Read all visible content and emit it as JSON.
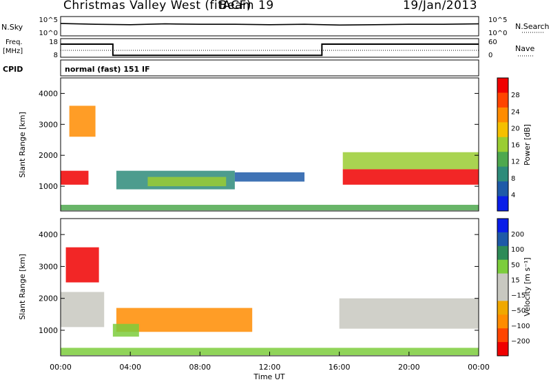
{
  "header": {
    "station": "Christmas Valley West (fitACF)",
    "beam": "Beam 19",
    "date": "19/Jan/2013"
  },
  "panels": {
    "noise": {
      "left_label": "N.Sky",
      "left_ticks": [
        "10^5",
        "10^0"
      ],
      "right_ticks": [
        "10^5",
        "10^0"
      ],
      "right_label": "N.Search"
    },
    "freq": {
      "left_label_1": "Freq.",
      "left_label_2": "[MHz]",
      "left_ticks": [
        "18",
        "8"
      ],
      "right_ticks": [
        "60",
        "0"
      ],
      "right_label": "Nave"
    },
    "cpid": {
      "label": "CPID",
      "value": "normal (fast) 151 IF"
    }
  },
  "colors": {
    "power_scale": [
      "#0a1ee8",
      "#1e5aa8",
      "#2e8b7a",
      "#4ea84e",
      "#9acd32",
      "#f5c000",
      "#ff8c00",
      "#ff4500",
      "#f00000"
    ],
    "velocity_scale": [
      "#f00000",
      "#ff4500",
      "#ff8c00",
      "#f0a800",
      "#c8c8c0",
      "#c8c8c0",
      "#7ccd3c",
      "#2e8b57",
      "#1e5aa8",
      "#0a1ee8"
    ]
  },
  "chart_data": [
    {
      "type": "line",
      "name": "noise",
      "x": [
        0,
        2,
        4,
        6,
        8,
        10,
        12,
        14,
        16,
        18,
        20,
        22,
        24
      ],
      "series": [
        {
          "values": [
            3.2,
            3.0,
            2.9,
            3.1,
            3.0,
            3.0,
            2.9,
            3.0,
            2.8,
            2.9,
            3.0,
            3.0,
            3.1
          ]
        }
      ]
    },
    {
      "type": "line",
      "name": "frequency",
      "x": [
        0,
        3,
        3,
        15,
        15,
        24
      ],
      "series": [
        {
          "values": [
            18,
            18,
            9,
            9,
            18,
            18
          ]
        }
      ]
    },
    {
      "type": "heatmap",
      "name": "power",
      "xlabel": "",
      "ylabel": "Slant Range [km]",
      "xlim": [
        0,
        24
      ],
      "ylim": [
        200,
        4500
      ],
      "yticks": [
        "1000",
        "2000",
        "3000",
        "4000"
      ],
      "colorbar_label": "Power [dB]",
      "colorbar_ticks": [
        "28",
        "24",
        "20",
        "16",
        "12",
        "8",
        "4"
      ],
      "regions": [
        {
          "t": [
            0.0,
            1.6
          ],
          "r": [
            1050,
            1500
          ],
          "level": 8
        },
        {
          "t": [
            0.5,
            2.0
          ],
          "r": [
            2600,
            3600
          ],
          "level": 6
        },
        {
          "t": [
            3.2,
            10.0
          ],
          "r": [
            900,
            1500
          ],
          "level": 2
        },
        {
          "t": [
            5.0,
            9.5
          ],
          "r": [
            1000,
            1300
          ],
          "level": 4
        },
        {
          "t": [
            10.0,
            14.0
          ],
          "r": [
            1150,
            1450
          ],
          "level": 1
        },
        {
          "t": [
            16.2,
            24.0
          ],
          "r": [
            1050,
            1550
          ],
          "level": 8
        },
        {
          "t": [
            16.2,
            24.0
          ],
          "r": [
            1550,
            2100
          ],
          "level": 4
        },
        {
          "t": [
            0.0,
            24.0
          ],
          "r": [
            220,
            400
          ],
          "level": 3
        }
      ]
    },
    {
      "type": "heatmap",
      "name": "velocity",
      "xlabel": "Time UT",
      "ylabel": "Slant Range [km]",
      "xlim": [
        0,
        24
      ],
      "ylim": [
        200,
        4500
      ],
      "xticks": [
        "00:00",
        "04:00",
        "08:00",
        "12:00",
        "16:00",
        "20:00",
        "00:00"
      ],
      "yticks": [
        "1000",
        "2000",
        "3000",
        "4000"
      ],
      "colorbar_label": "Velocity [m s⁻¹]",
      "colorbar_ticks": [
        "200",
        "100",
        "50",
        "15",
        "−15",
        "−50",
        "−100",
        "−200"
      ],
      "regions": [
        {
          "t": [
            0.0,
            2.5
          ],
          "r": [
            1100,
            2200
          ],
          "level": 4
        },
        {
          "t": [
            0.3,
            2.2
          ],
          "r": [
            2500,
            3600
          ],
          "level": 0
        },
        {
          "t": [
            3.2,
            11.0
          ],
          "r": [
            950,
            1700
          ],
          "level": 2
        },
        {
          "t": [
            3.0,
            4.5
          ],
          "r": [
            800,
            1200
          ],
          "level": 6
        },
        {
          "t": [
            16.0,
            24.0
          ],
          "r": [
            1050,
            2000
          ],
          "level": 4
        },
        {
          "t": [
            0.0,
            24.0
          ],
          "r": [
            220,
            450
          ],
          "level": 6
        }
      ]
    }
  ]
}
